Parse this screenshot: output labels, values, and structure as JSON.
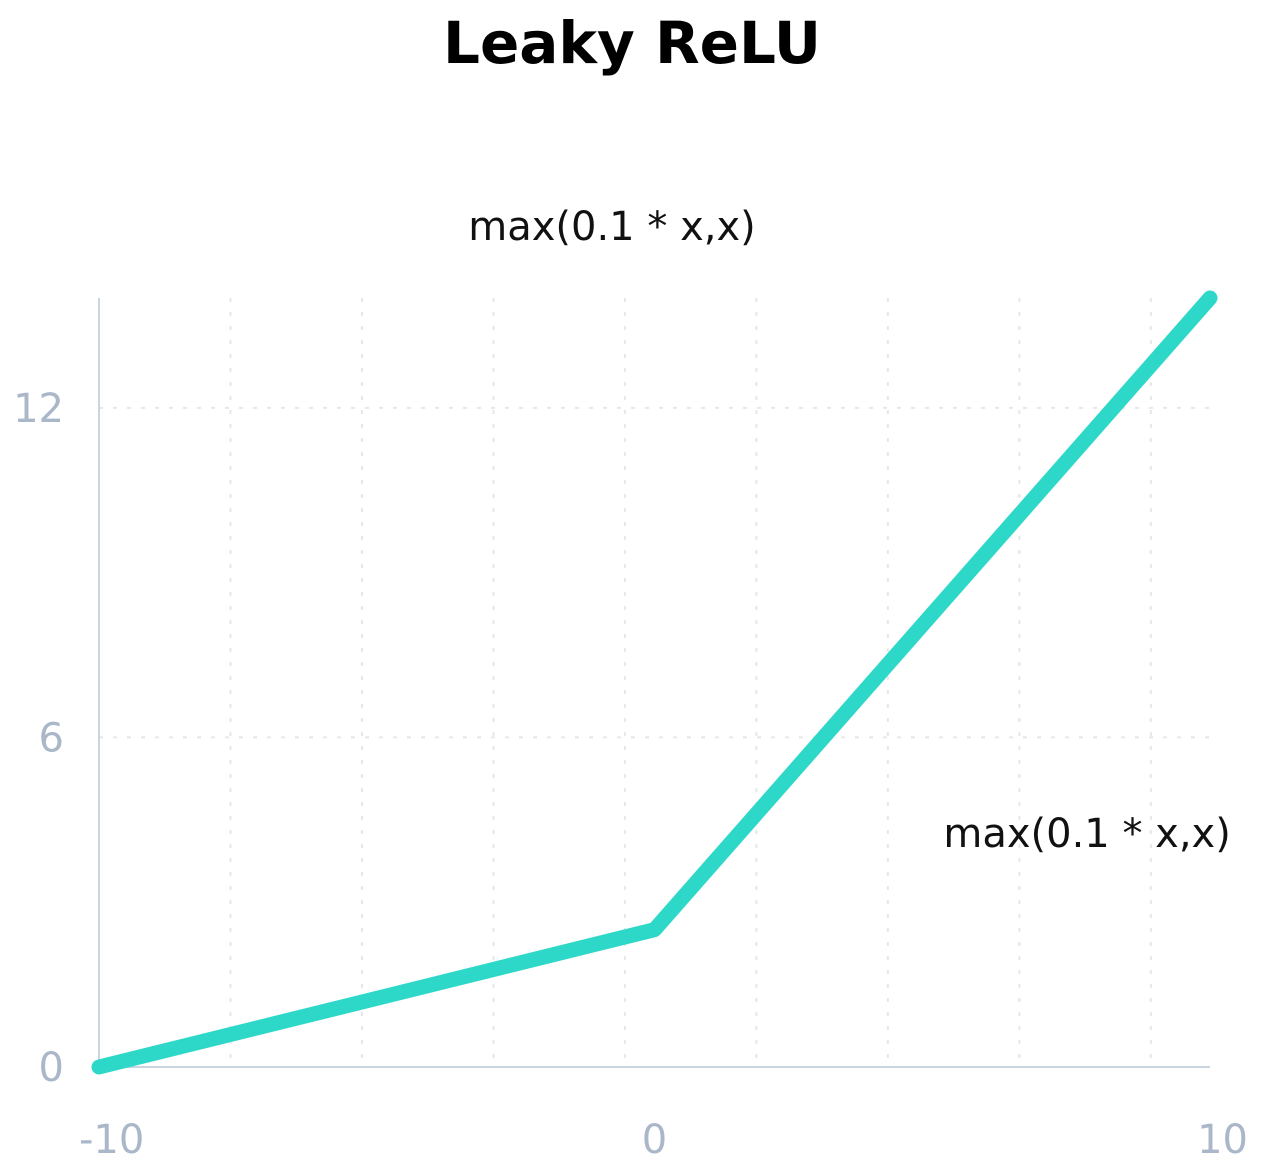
{
  "chart_data": {
    "type": "line",
    "title": "Leaky ReLU",
    "subtitle": "max(0.1 * x,x)",
    "xlabel": "",
    "ylabel": "",
    "xlim": [
      -10,
      10
    ],
    "ylim": [
      0,
      14
    ],
    "x_ticks": [
      -10,
      0,
      10
    ],
    "y_ticks": [
      0,
      6,
      12
    ],
    "grid": true,
    "legend": "none",
    "series": [
      {
        "x": [
          -10,
          0,
          10
        ],
        "y": [
          0,
          2.5,
          14
        ],
        "color": "#2ED8C8"
      }
    ],
    "annotations": [
      {
        "text": "max(0.1 * x,x)",
        "x": 5.2,
        "y": 4.1
      }
    ]
  },
  "colors": {
    "line": "#2ED8C8",
    "axis": "#CBD5E1",
    "grid": "#E5E7EB",
    "tick_label": "#AAB7C9",
    "title": "#000000"
  }
}
